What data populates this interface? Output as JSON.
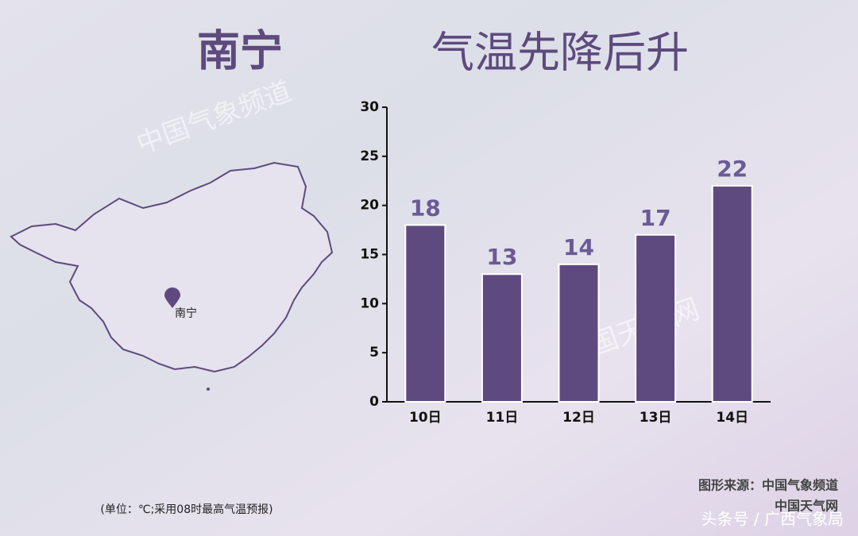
{
  "chart_data": {
    "type": "bar",
    "city": "南宁",
    "title": "气温先降后升",
    "map_label": "南宁",
    "categories": [
      "10日",
      "11日",
      "12日",
      "13日",
      "14日"
    ],
    "values": [
      18,
      13,
      14,
      17,
      22
    ],
    "color": "#5e4a7e",
    "ylim": [
      0,
      30
    ],
    "yticks": [
      0,
      5,
      10,
      15,
      20,
      25,
      30
    ],
    "note": "(单位：℃;采用08时最高气温预报)",
    "source": "图形来源：中国气象频道",
    "source2": "中国天气网",
    "watermarks": [
      "中国气象频道",
      "中国天气网",
      "头条号 / 广西气象局"
    ]
  }
}
